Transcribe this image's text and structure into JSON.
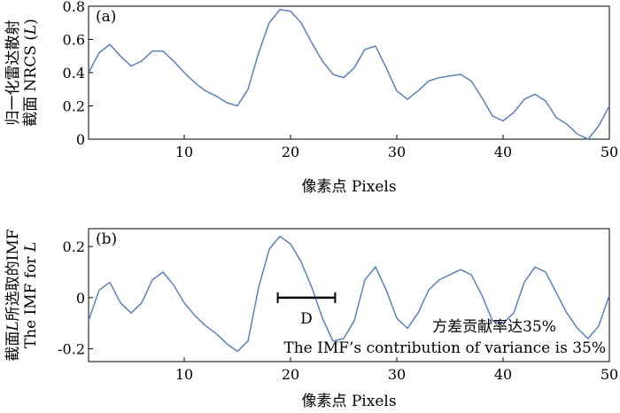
{
  "chart_data": [
    {
      "type": "line",
      "panel_label": "(a)",
      "xlabel": "像素点 Pixels",
      "ylabel_line1": "归一化雷达散射",
      "ylabel_line2_prefix": "截面 NRCS (",
      "ylabel_line2_var": "L",
      "ylabel_line2_suffix": ")",
      "xlim": [
        1,
        50
      ],
      "ylim": [
        0,
        0.8
      ],
      "xticks": [
        10,
        20,
        30,
        40,
        50
      ],
      "yticks": [
        0,
        0.2,
        0.4,
        0.6,
        0.8
      ],
      "xtick_labels": [
        "10",
        "20",
        "30",
        "40",
        "50"
      ],
      "ytick_labels": [
        "0",
        "0.2",
        "0.4",
        "0.6",
        "0.8"
      ],
      "color": "#5b7fbf",
      "x": [
        1,
        2,
        3,
        4,
        5,
        6,
        7,
        8,
        9,
        10,
        11,
        12,
        13,
        14,
        15,
        16,
        17,
        18,
        19,
        20,
        21,
        22,
        23,
        24,
        25,
        26,
        27,
        28,
        29,
        30,
        31,
        32,
        33,
        34,
        35,
        36,
        37,
        38,
        39,
        40,
        41,
        42,
        43,
        44,
        45,
        46,
        47,
        48,
        49,
        50
      ],
      "y": [
        0.4,
        0.52,
        0.57,
        0.5,
        0.44,
        0.47,
        0.53,
        0.53,
        0.47,
        0.4,
        0.34,
        0.29,
        0.26,
        0.22,
        0.2,
        0.3,
        0.52,
        0.7,
        0.78,
        0.77,
        0.7,
        0.58,
        0.47,
        0.39,
        0.37,
        0.43,
        0.54,
        0.56,
        0.43,
        0.29,
        0.24,
        0.29,
        0.35,
        0.37,
        0.38,
        0.39,
        0.35,
        0.25,
        0.14,
        0.11,
        0.16,
        0.24,
        0.27,
        0.23,
        0.13,
        0.09,
        0.03,
        0.0,
        0.08,
        0.2
      ]
    },
    {
      "type": "line",
      "panel_label": "(b)",
      "xlabel": "像素点 Pixels",
      "ylabel_line1_prefix": "截面",
      "ylabel_line1_var": "L",
      "ylabel_line1_suffix": "所选取的IMF",
      "ylabel_line2_prefix": "The IMF for ",
      "ylabel_line2_var": "L",
      "xlim": [
        1,
        50
      ],
      "ylim": [
        -0.25,
        0.27
      ],
      "xticks": [
        10,
        20,
        30,
        40,
        50
      ],
      "yticks": [
        -0.2,
        0,
        0.2
      ],
      "xtick_labels": [
        "10",
        "20",
        "30",
        "40",
        "50"
      ],
      "ytick_labels": [
        "-0.2",
        "0",
        "0.2"
      ],
      "color": "#5b7fbf",
      "x": [
        1,
        2,
        3,
        4,
        5,
        6,
        7,
        8,
        9,
        10,
        11,
        12,
        13,
        14,
        15,
        16,
        17,
        18,
        19,
        20,
        21,
        22,
        23,
        24,
        25,
        26,
        27,
        28,
        29,
        30,
        31,
        32,
        33,
        34,
        35,
        36,
        37,
        38,
        39,
        40,
        41,
        42,
        43,
        44,
        45,
        46,
        47,
        48,
        49,
        50
      ],
      "y": [
        -0.09,
        0.03,
        0.06,
        -0.02,
        -0.06,
        -0.02,
        0.07,
        0.1,
        0.05,
        -0.02,
        -0.07,
        -0.11,
        -0.14,
        -0.18,
        -0.21,
        -0.17,
        0.04,
        0.19,
        0.24,
        0.21,
        0.14,
        0.04,
        -0.08,
        -0.17,
        -0.16,
        -0.09,
        0.07,
        0.12,
        0.03,
        -0.08,
        -0.12,
        -0.06,
        0.03,
        0.07,
        0.09,
        0.11,
        0.09,
        0.01,
        -0.09,
        -0.1,
        -0.06,
        0.06,
        0.12,
        0.1,
        0.02,
        -0.06,
        -0.12,
        -0.16,
        -0.11,
        0.01
      ],
      "annotation_marker": {
        "label": "D",
        "x_start": 18.8,
        "x_end": 24.2,
        "y": 0
      },
      "annotation_line1": "方差贡献率达35%",
      "annotation_line2": "The IMF’s contribution of variance is 35%"
    }
  ]
}
